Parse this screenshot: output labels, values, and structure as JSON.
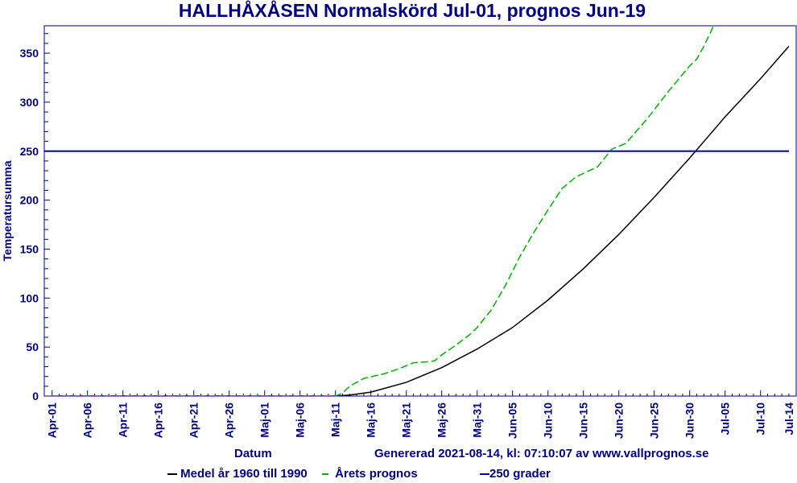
{
  "chart_data": {
    "type": "line",
    "title": "HALLHÅXÅSEN Normalskörd Jul-01, prognos Jun-19",
    "xlabel": "Datum",
    "ylabel": "Temperatursumma",
    "ylim": [
      0,
      378
    ],
    "yticks": [
      0,
      50,
      100,
      150,
      200,
      250,
      300,
      350
    ],
    "xticks": [
      "Apr-01",
      "Apr-06",
      "Apr-11",
      "Apr-16",
      "Apr-21",
      "Apr-26",
      "Maj-01",
      "Maj-06",
      "Maj-11",
      "Maj-16",
      "Maj-21",
      "Maj-26",
      "Maj-31",
      "Jun-05",
      "Jun-10",
      "Jun-15",
      "Jun-20",
      "Jun-25",
      "Jun-30",
      "Jul-05",
      "Jul-10",
      "Jul-14"
    ],
    "xlim": [
      "Apr-01",
      "Jul-14"
    ],
    "grid": false,
    "legend_placement": "bottom",
    "footer": "Genererad 2021-08-14, kl: 07:10:07 av www.vallprognos.se",
    "series": [
      {
        "name": "Medel år 1960 till 1990",
        "color": "#000000",
        "style": "solid",
        "points": [
          [
            "Apr-01",
            0
          ],
          [
            "Maj-11",
            0
          ],
          [
            "Maj-13",
            1
          ],
          [
            "Maj-16",
            4
          ],
          [
            "Maj-21",
            14
          ],
          [
            "Maj-26",
            29
          ],
          [
            "Maj-31",
            48
          ],
          [
            "Jun-05",
            70
          ],
          [
            "Jun-10",
            98
          ],
          [
            "Jun-15",
            130
          ],
          [
            "Jun-20",
            165
          ],
          [
            "Jun-25",
            203
          ],
          [
            "Jun-30",
            243
          ],
          [
            "Jul-05",
            285
          ],
          [
            "Jul-10",
            324
          ],
          [
            "Jul-14",
            357
          ]
        ]
      },
      {
        "name": "Årets prognos",
        "color": "#00b000",
        "style": "dashed",
        "points": [
          [
            "Apr-01",
            0
          ],
          [
            "Maj-11",
            0
          ],
          [
            "Maj-12",
            3
          ],
          [
            "Maj-13",
            10
          ],
          [
            "Maj-15",
            18
          ],
          [
            "Maj-18",
            23
          ],
          [
            "Maj-20",
            28
          ],
          [
            "Maj-22",
            34
          ],
          [
            "Maj-24",
            35
          ],
          [
            "Maj-25",
            36
          ],
          [
            "Maj-26",
            42
          ],
          [
            "Maj-28",
            52
          ],
          [
            "Maj-30",
            63
          ],
          [
            "Maj-31",
            70
          ],
          [
            "Jun-02",
            88
          ],
          [
            "Jun-04",
            113
          ],
          [
            "Jun-06",
            142
          ],
          [
            "Jun-08",
            167
          ],
          [
            "Jun-10",
            190
          ],
          [
            "Jun-12",
            212
          ],
          [
            "Jun-14",
            224
          ],
          [
            "Jun-17",
            234
          ],
          [
            "Jun-19",
            252
          ],
          [
            "Jun-21",
            258
          ],
          [
            "Jun-24",
            283
          ],
          [
            "Jun-27",
            311
          ],
          [
            "Jun-30",
            337
          ],
          [
            "Jul-01",
            344
          ],
          [
            "Jul-02",
            357
          ],
          [
            "Jul-03",
            372
          ],
          [
            "Jul-05",
            405
          ]
        ]
      },
      {
        "name": "250 grader",
        "color": "#0000c0",
        "style": "solid",
        "constant": 250
      }
    ]
  }
}
